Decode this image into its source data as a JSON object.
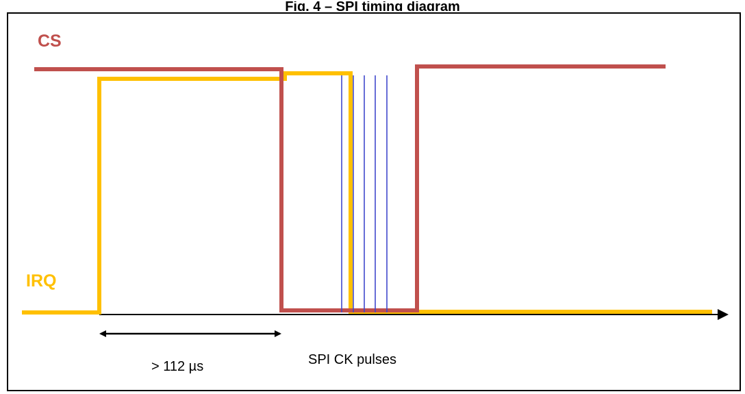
{
  "figure": {
    "title": "Fig. 4 – SPI timing diagram",
    "cs_label": "CS",
    "irq_label": "IRQ",
    "interval_label": "> 112 µs",
    "spi_label": "SPI CK pulses",
    "colors": {
      "cs": "#c0504d",
      "irq": "#ffc000",
      "clock": "#3f48cc",
      "axis": "#000000"
    }
  }
}
